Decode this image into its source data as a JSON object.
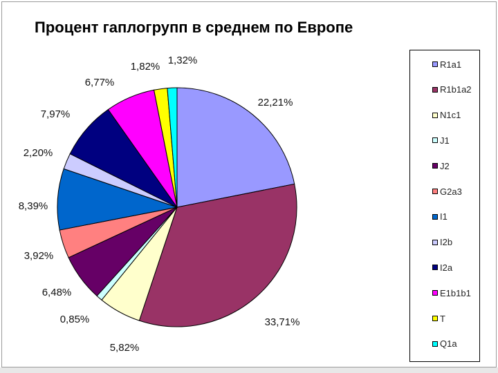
{
  "chart_data": {
    "type": "pie",
    "title": "Процент гаплогрупп в среднем по Европе",
    "legend_position": "right",
    "slices": [
      {
        "name": "R1a1",
        "value": 22.21,
        "label": "22,21%",
        "color": "#9999ff"
      },
      {
        "name": "R1b1a2",
        "value": 33.71,
        "label": "33,71%",
        "color": "#993366"
      },
      {
        "name": "N1c1",
        "value": 5.82,
        "label": "5,82%",
        "color": "#ffffcc"
      },
      {
        "name": "J1",
        "value": 0.85,
        "label": "0,85%",
        "color": "#ccffff"
      },
      {
        "name": "J2",
        "value": 6.48,
        "label": "6,48%",
        "color": "#660066"
      },
      {
        "name": "G2a3",
        "value": 3.92,
        "label": "3,92%",
        "color": "#ff8080"
      },
      {
        "name": "I1",
        "value": 8.39,
        "label": "8,39%",
        "color": "#0066cc"
      },
      {
        "name": "I2b",
        "value": 2.2,
        "label": "2,20%",
        "color": "#ccccff"
      },
      {
        "name": "I2a",
        "value": 7.97,
        "label": "7,97%",
        "color": "#000080"
      },
      {
        "name": "E1b1b1",
        "value": 6.77,
        "label": "6,77%",
        "color": "#ff00ff"
      },
      {
        "name": "T",
        "value": 1.82,
        "label": "1,82%",
        "color": "#ffff00"
      },
      {
        "name": "Q1a",
        "value": 1.32,
        "label": "1,32%",
        "color": "#00ffff"
      }
    ]
  }
}
